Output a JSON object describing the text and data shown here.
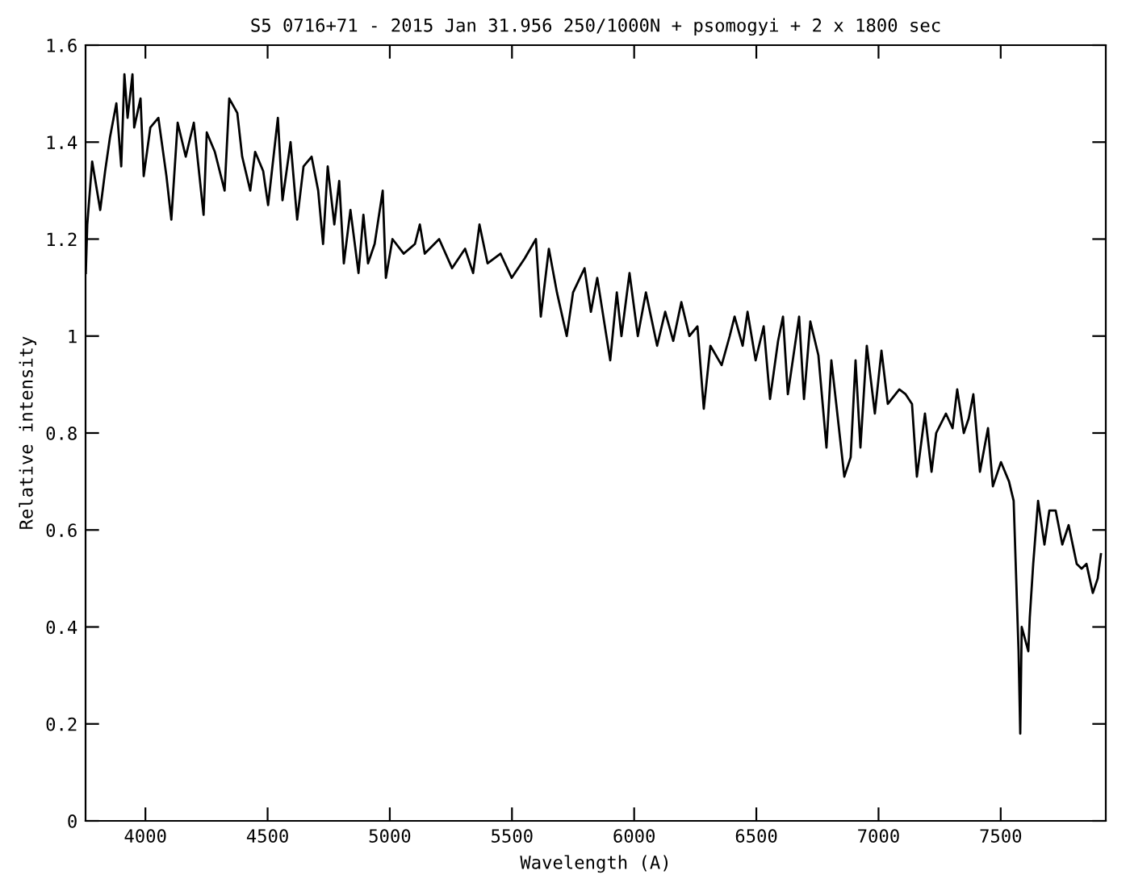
{
  "chart_data": {
    "type": "line",
    "title": "S5 0716+71 - 2015 Jan 31.956 250/1000N + psomogyi + 2 x 1800 sec",
    "xlabel": "Wavelength (A)",
    "ylabel": "Relative intensity",
    "x": [
      3756,
      3762,
      3782,
      3815,
      3835,
      3855,
      3881,
      3901,
      3914,
      3927,
      3947,
      3954,
      3980,
      3993,
      4020,
      4053,
      4086,
      4106,
      4132,
      4165,
      4198,
      4238,
      4251,
      4284,
      4324,
      4343,
      4376,
      4396,
      4429,
      4449,
      4482,
      4502,
      4542,
      4561,
      4594,
      4621,
      4647,
      4680,
      4707,
      4727,
      4746,
      4773,
      4793,
      4812,
      4839,
      4872,
      4892,
      4911,
      4938,
      4971,
      4984,
      5011,
      5057,
      5103,
      5123,
      5143,
      5202,
      5255,
      5308,
      5341,
      5367,
      5400,
      5453,
      5499,
      5552,
      5598,
      5618,
      5651,
      5684,
      5724,
      5750,
      5797,
      5823,
      5849,
      5902,
      5929,
      5948,
      5981,
      6015,
      6048,
      6094,
      6127,
      6160,
      6193,
      6226,
      6259,
      6285,
      6312,
      6358,
      6391,
      6411,
      6444,
      6464,
      6497,
      6530,
      6556,
      6589,
      6609,
      6629,
      6675,
      6695,
      6721,
      6754,
      6787,
      6807,
      6827,
      6860,
      6886,
      6906,
      6926,
      6952,
      6985,
      7012,
      7038,
      7085,
      7111,
      7137,
      7157,
      7190,
      7217,
      7236,
      7276,
      7303,
      7322,
      7349,
      7369,
      7388,
      7415,
      7448,
      7468,
      7501,
      7534,
      7553,
      7573,
      7580,
      7586,
      7613,
      7619,
      7633,
      7653,
      7679,
      7699,
      7725,
      7752,
      7778,
      7811,
      7831,
      7851,
      7877,
      7897,
      7910
    ],
    "values": [
      1.13,
      1.23,
      1.36,
      1.26,
      1.34,
      1.41,
      1.48,
      1.35,
      1.54,
      1.45,
      1.54,
      1.43,
      1.49,
      1.33,
      1.43,
      1.45,
      1.33,
      1.24,
      1.44,
      1.37,
      1.44,
      1.25,
      1.42,
      1.38,
      1.3,
      1.49,
      1.46,
      1.37,
      1.3,
      1.38,
      1.34,
      1.27,
      1.45,
      1.28,
      1.4,
      1.24,
      1.35,
      1.37,
      1.3,
      1.19,
      1.35,
      1.23,
      1.32,
      1.15,
      1.26,
      1.13,
      1.25,
      1.15,
      1.19,
      1.3,
      1.12,
      1.2,
      1.17,
      1.19,
      1.23,
      1.17,
      1.2,
      1.14,
      1.18,
      1.13,
      1.23,
      1.15,
      1.17,
      1.12,
      1.16,
      1.2,
      1.04,
      1.18,
      1.09,
      1.0,
      1.09,
      1.14,
      1.05,
      1.12,
      0.95,
      1.09,
      1.0,
      1.13,
      1.0,
      1.09,
      0.98,
      1.05,
      0.99,
      1.07,
      1.0,
      1.02,
      0.85,
      0.98,
      0.94,
      1.0,
      1.04,
      0.98,
      1.05,
      0.95,
      1.02,
      0.87,
      0.99,
      1.04,
      0.88,
      1.04,
      0.87,
      1.03,
      0.96,
      0.77,
      0.95,
      0.86,
      0.71,
      0.75,
      0.95,
      0.77,
      0.98,
      0.84,
      0.97,
      0.86,
      0.89,
      0.88,
      0.86,
      0.71,
      0.84,
      0.72,
      0.8,
      0.84,
      0.81,
      0.89,
      0.8,
      0.83,
      0.88,
      0.72,
      0.81,
      0.69,
      0.74,
      0.7,
      0.66,
      0.35,
      0.18,
      0.4,
      0.35,
      0.42,
      0.53,
      0.66,
      0.57,
      0.64,
      0.64,
      0.57,
      0.61,
      0.53,
      0.52,
      0.53,
      0.47,
      0.5,
      0.55
    ],
    "color": "#000000",
    "xlim": [
      3755,
      7930
    ],
    "xticks": [
      4000,
      4500,
      5000,
      5500,
      6000,
      6500,
      7000,
      7500
    ],
    "ylim": [
      0,
      1.6
    ],
    "yticks": [
      0,
      0.2,
      0.4,
      0.6,
      0.8,
      1,
      1.2,
      1.4,
      1.6
    ],
    "grid": false,
    "legend": false,
    "marker": "none",
    "line_style": "solid"
  }
}
